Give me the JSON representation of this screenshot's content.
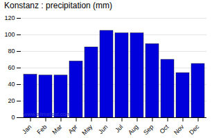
{
  "chart_data": {
    "type": "bar",
    "title": "Konstanz : precipitation (mm)",
    "categories": [
      "Jan",
      "Feb",
      "Mar",
      "Apr",
      "May",
      "Jun",
      "Jul",
      "Aug",
      "Sep",
      "Oct",
      "Nov",
      "Dec"
    ],
    "values": [
      52,
      51,
      51,
      68,
      85,
      105,
      102,
      102,
      89,
      70,
      54,
      65
    ],
    "color": "#0000dd",
    "ylim": [
      0,
      120
    ],
    "yticks": [
      0,
      20,
      40,
      60,
      80,
      100,
      120
    ],
    "grid": true,
    "annotations": [
      "www.allmetsat.com"
    ]
  }
}
